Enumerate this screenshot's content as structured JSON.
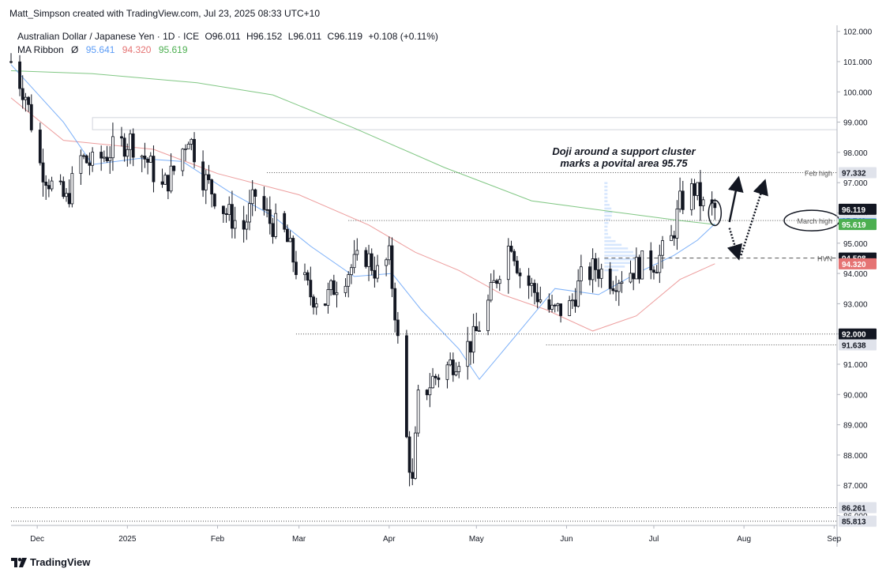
{
  "header": {
    "author_line": "Matt_Simpson created with TradingView.com, Jul 23, 2025 08:33 UTC+10"
  },
  "legend": {
    "symbol": "Australian Dollar / Japanese Yen · 1D · ICE",
    "open": "O96.011",
    "high": "H96.152",
    "low": "L96.011",
    "close": "C96.119",
    "change": "+0.108 (+0.11%)",
    "ma_label": "MA Ribbon",
    "ma_symbol": "Ø",
    "ma_values": [
      "95.641",
      "94.320",
      "95.619"
    ]
  },
  "footer": {
    "brand": "TradingView"
  },
  "colors": {
    "up": "#131722",
    "down": "#131722",
    "ma_fast": "#5b9cf6",
    "ma_mid": "#e57373",
    "ma_slow": "#4caf50",
    "price_tag_bg": "#131722"
  },
  "chart_data": {
    "type": "candlestick",
    "ylim": [
      85.7,
      102.2
    ],
    "y_ticks": [
      86,
      87,
      88,
      89,
      90,
      91,
      92,
      93,
      94,
      95,
      96,
      97,
      98,
      99,
      100,
      101,
      102
    ],
    "y_tick_labels": [
      "86.000",
      "87.000",
      "88.000",
      "89.000",
      "90.000",
      "91.000",
      "92.000",
      "93.000",
      "94.000",
      "95.000",
      "96.000",
      "97.000",
      "98.000",
      "99.000",
      "100.000",
      "101.000",
      "102.000"
    ],
    "x_labels": [
      {
        "label": "Dec",
        "date": "2024-12-01"
      },
      {
        "label": "2025",
        "date": "2025-01-01"
      },
      {
        "label": "Feb",
        "date": "2025-02-01"
      },
      {
        "label": "Mar",
        "date": "2025-03-01"
      },
      {
        "label": "Apr",
        "date": "2025-04-01"
      },
      {
        "label": "May",
        "date": "2025-05-01"
      },
      {
        "label": "Jun",
        "date": "2025-06-01"
      },
      {
        "label": "Jul",
        "date": "2025-07-01"
      },
      {
        "label": "Aug",
        "date": "2025-08-01"
      },
      {
        "label": "Sep",
        "date": "2025-09-01"
      }
    ],
    "date_range": [
      "2024-11-22",
      "2025-09-02"
    ],
    "price_path": [
      [
        "2024-11-22",
        101.0
      ],
      [
        "2024-11-27",
        99.9
      ],
      [
        "2024-12-02",
        97.6
      ],
      [
        "2024-12-06",
        96.9
      ],
      [
        "2024-12-11",
        96.4
      ],
      [
        "2024-12-16",
        97.8
      ],
      [
        "2024-12-20",
        97.6
      ],
      [
        "2024-12-27",
        98.1
      ],
      [
        "2025-01-02",
        98.4
      ],
      [
        "2025-01-08",
        97.7
      ],
      [
        "2025-01-13",
        96.8
      ],
      [
        "2025-01-17",
        97.4
      ],
      [
        "2025-01-22",
        98.6
      ],
      [
        "2025-01-27",
        97.2
      ],
      [
        "2025-01-31",
        96.6
      ],
      [
        "2025-02-04",
        96.0
      ],
      [
        "2025-02-10",
        95.5
      ],
      [
        "2025-02-14",
        96.6
      ],
      [
        "2025-02-19",
        95.7
      ],
      [
        "2025-02-24",
        95.3
      ],
      [
        "2025-02-28",
        94.2
      ],
      [
        "2025-03-05",
        93.3
      ],
      [
        "2025-03-10",
        93.1
      ],
      [
        "2025-03-14",
        93.7
      ],
      [
        "2025-03-19",
        94.2
      ],
      [
        "2025-03-24",
        94.6
      ],
      [
        "2025-03-28",
        94.0
      ],
      [
        "2025-04-01",
        94.5
      ],
      [
        "2025-04-03",
        92.8
      ],
      [
        "2025-04-07",
        88.5
      ],
      [
        "2025-04-09",
        87.0
      ],
      [
        "2025-04-11",
        89.8
      ],
      [
        "2025-04-16",
        90.5
      ],
      [
        "2025-04-22",
        91.0
      ],
      [
        "2025-04-25",
        91.3
      ],
      [
        "2025-04-30",
        91.8
      ],
      [
        "2025-05-05",
        93.0
      ],
      [
        "2025-05-09",
        94.2
      ],
      [
        "2025-05-13",
        95.1
      ],
      [
        "2025-05-16",
        94.0
      ],
      [
        "2025-05-21",
        93.4
      ],
      [
        "2025-05-27",
        92.7
      ],
      [
        "2025-06-02",
        92.9
      ],
      [
        "2025-06-06",
        93.8
      ],
      [
        "2025-06-11",
        94.2
      ],
      [
        "2025-06-17",
        93.8
      ],
      [
        "2025-06-23",
        94.1
      ],
      [
        "2025-06-27",
        94.3
      ],
      [
        "2025-07-02",
        94.4
      ],
      [
        "2025-07-07",
        95.1
      ],
      [
        "2025-07-10",
        96.3
      ],
      [
        "2025-07-15",
        96.8
      ],
      [
        "2025-07-18",
        96.2
      ],
      [
        "2025-07-22",
        96.119
      ]
    ],
    "ma_fast_path": [
      [
        "2024-11-22",
        100.9
      ],
      [
        "2024-12-10",
        99.0
      ],
      [
        "2024-12-20",
        97.6
      ],
      [
        "2025-01-05",
        97.8
      ],
      [
        "2025-01-20",
        97.7
      ],
      [
        "2025-02-05",
        96.7
      ],
      [
        "2025-02-20",
        95.9
      ],
      [
        "2025-03-05",
        94.9
      ],
      [
        "2025-03-20",
        93.9
      ],
      [
        "2025-04-02",
        94.0
      ],
      [
        "2025-04-12",
        92.8
      ],
      [
        "2025-04-25",
        91.5
      ],
      [
        "2025-05-02",
        90.5
      ],
      [
        "2025-05-15",
        92.0
      ],
      [
        "2025-05-28",
        93.5
      ],
      [
        "2025-06-12",
        93.3
      ],
      [
        "2025-06-25",
        94.0
      ],
      [
        "2025-07-08",
        94.6
      ],
      [
        "2025-07-16",
        95.1
      ],
      [
        "2025-07-22",
        95.641
      ]
    ],
    "ma_mid_path": [
      [
        "2024-11-22",
        99.8
      ],
      [
        "2024-12-10",
        98.4
      ],
      [
        "2025-01-10",
        98.1
      ],
      [
        "2025-02-01",
        97.3
      ],
      [
        "2025-03-01",
        96.6
      ],
      [
        "2025-03-25",
        95.6
      ],
      [
        "2025-04-10",
        94.7
      ],
      [
        "2025-04-25",
        94.1
      ],
      [
        "2025-05-10",
        93.3
      ],
      [
        "2025-05-25",
        92.8
      ],
      [
        "2025-06-10",
        92.1
      ],
      [
        "2025-06-25",
        92.6
      ],
      [
        "2025-07-10",
        93.8
      ],
      [
        "2025-07-22",
        94.32
      ]
    ],
    "ma_slow_path": [
      [
        "2024-11-22",
        100.7
      ],
      [
        "2024-12-20",
        100.6
      ],
      [
        "2025-01-25",
        100.3
      ],
      [
        "2025-02-20",
        99.9
      ],
      [
        "2025-03-20",
        98.8
      ],
      [
        "2025-04-20",
        97.5
      ],
      [
        "2025-05-20",
        96.4
      ],
      [
        "2025-06-20",
        96.0
      ],
      [
        "2025-07-10",
        95.75
      ],
      [
        "2025-07-22",
        95.619
      ]
    ],
    "price_labels": [
      {
        "value": 96.119,
        "text": "96.119",
        "bg": "#131722",
        "fg": "#ffffff"
      },
      {
        "value": 95.749,
        "text": "95.749",
        "bg": "#e0e3eb",
        "fg": "#131722"
      },
      {
        "value": 95.641,
        "text": "95.641",
        "bg": "#5b9cf6",
        "fg": "#ffffff"
      },
      {
        "value": 95.619,
        "text": "95.619",
        "bg": "#4caf50",
        "fg": "#ffffff"
      },
      {
        "value": 94.508,
        "text": "94.508",
        "bg": "#131722",
        "fg": "#ffffff"
      },
      {
        "value": 94.32,
        "text": "94.320",
        "bg": "#e57373",
        "fg": "#ffffff"
      },
      {
        "value": 97.332,
        "text": "97.332",
        "bg": "#e0e3eb",
        "fg": "#131722"
      },
      {
        "value": 92.0,
        "text": "92.000",
        "bg": "#131722",
        "fg": "#ffffff"
      },
      {
        "value": 91.638,
        "text": "91.638",
        "bg": "#e0e3eb",
        "fg": "#131722"
      },
      {
        "value": 86.261,
        "text": "86.261",
        "bg": "#e0e3eb",
        "fg": "#131722"
      },
      {
        "value": 85.813,
        "text": "85.813",
        "bg": "#e0e3eb",
        "fg": "#131722"
      }
    ],
    "levels": [
      {
        "value": 97.332,
        "text": "Feb high",
        "style": "dotted",
        "from": "2025-02-18"
      },
      {
        "value": 95.749,
        "text": "March high",
        "style": "dotted",
        "from": "2025-03-18"
      },
      {
        "value": 94.508,
        "text": "HVN",
        "style": "dashed",
        "from": "2025-06-14"
      },
      {
        "value": 92.0,
        "text": "",
        "style": "dotted",
        "from": "2025-02-28"
      },
      {
        "value": 91.638,
        "text": "",
        "style": "dotted",
        "from": "2025-05-25"
      },
      {
        "value": 86.261,
        "text": "",
        "style": "dotted",
        "from": "2024-11-22"
      },
      {
        "value": 85.813,
        "text": "",
        "style": "dotted",
        "from": "2024-11-22"
      }
    ],
    "annotation": {
      "line1": "Doji around a support cluster",
      "line2": "marks a povital area 95.75"
    }
  }
}
